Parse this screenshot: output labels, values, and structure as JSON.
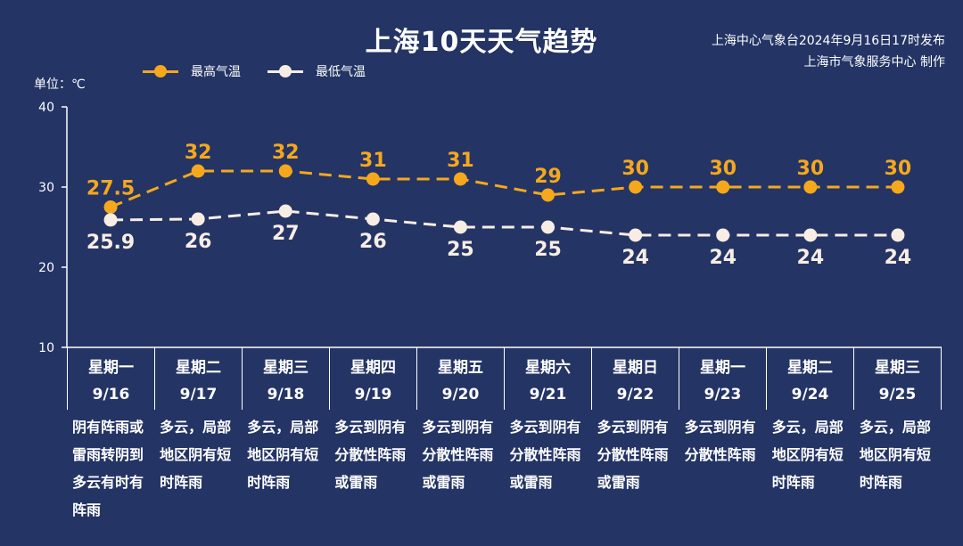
{
  "header": {
    "title": "上海10天天气趋势",
    "issuer_line1": "上海中心气象台2024年9月16日17时发布",
    "issuer_line2": "上海市气象服务中心 制作"
  },
  "legend": {
    "high_label": "最高气温",
    "low_label": "最低气温"
  },
  "axis": {
    "unit_label": "单位：℃",
    "ticks": [
      "40",
      "30",
      "20",
      "10"
    ]
  },
  "colors": {
    "background": "#243465",
    "high": "#F5A81C",
    "low": "#F7EDE4",
    "axis": "#FFFFFF"
  },
  "days": [
    {
      "weekday": "星期一",
      "date": "9/16",
      "desc": "阴有阵雨或雷雨转阴到多云有时有阵雨"
    },
    {
      "weekday": "星期二",
      "date": "9/17",
      "desc": "多云，局部地区阴有短时阵雨"
    },
    {
      "weekday": "星期三",
      "date": "9/18",
      "desc": "多云，局部地区阴有短时阵雨"
    },
    {
      "weekday": "星期四",
      "date": "9/19",
      "desc": "多云到阴有分散性阵雨或雷雨"
    },
    {
      "weekday": "星期五",
      "date": "9/20",
      "desc": "多云到阴有分散性阵雨或雷雨"
    },
    {
      "weekday": "星期六",
      "date": "9/21",
      "desc": "多云到阴有分散性阵雨或雷雨"
    },
    {
      "weekday": "星期日",
      "date": "9/22",
      "desc": "多云到阴有分散性阵雨或雷雨"
    },
    {
      "weekday": "星期一",
      "date": "9/23",
      "desc": "多云到阴有分散性阵雨"
    },
    {
      "weekday": "星期二",
      "date": "9/24",
      "desc": "多云，局部地区阴有短时阵雨"
    },
    {
      "weekday": "星期三",
      "date": "9/25",
      "desc": "多云，局部地区阴有短时阵雨"
    }
  ],
  "chart_data": {
    "type": "line",
    "title": "上海10天天气趋势",
    "xlabel": "",
    "ylabel": "单位：℃",
    "ylim": [
      10,
      40
    ],
    "yticks": [
      10,
      20,
      30,
      40
    ],
    "grid": false,
    "legend_position": "top-left",
    "categories": [
      "9/16",
      "9/17",
      "9/18",
      "9/19",
      "9/20",
      "9/21",
      "9/22",
      "9/23",
      "9/24",
      "9/25"
    ],
    "series": [
      {
        "name": "最高气温",
        "values": [
          27.5,
          32,
          32,
          31,
          31,
          29,
          30,
          30,
          30,
          30
        ],
        "labels": [
          "27.5",
          "32",
          "32",
          "31",
          "31",
          "29",
          "30",
          "30",
          "30",
          "30"
        ],
        "style": "dashed",
        "color": "#F5A81C"
      },
      {
        "name": "最低气温",
        "values": [
          25.9,
          26,
          27,
          26,
          25,
          25,
          24,
          24,
          24,
          24
        ],
        "labels": [
          "25.9",
          "26",
          "27",
          "26",
          "25",
          "25",
          "24",
          "24",
          "24",
          "24"
        ],
        "style": "dashed",
        "color": "#F7EDE4"
      }
    ]
  }
}
